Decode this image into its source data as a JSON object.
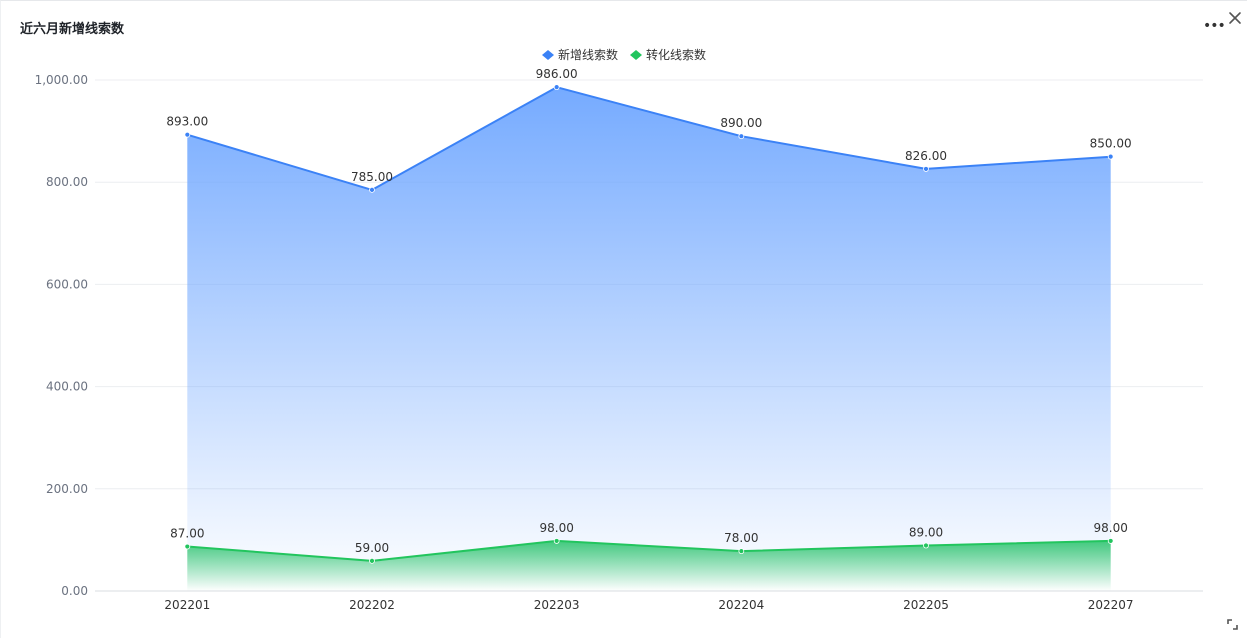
{
  "header": {
    "title": "近六月新增线索数",
    "more_icon": "more-horizontal-icon",
    "close_icon": "close-icon",
    "expand_icon": "expand-icon"
  },
  "chart_data": {
    "type": "area",
    "title": "近六月新增线索数",
    "categories": [
      "202201",
      "202202",
      "202203",
      "202204",
      "202205",
      "202207"
    ],
    "series": [
      {
        "name": "新增线索数",
        "values": [
          893,
          785,
          986,
          890,
          826,
          850
        ],
        "color": "#3b82f6",
        "fill_top": "#6ea6ff"
      },
      {
        "name": "转化线索数",
        "values": [
          87,
          59,
          98,
          78,
          89,
          98
        ],
        "color": "#22c55e",
        "fill_top": "#2fc470"
      }
    ],
    "y_ticks": [
      "0.00",
      "200.00",
      "400.00",
      "600.00",
      "800.00",
      "1,000.00"
    ],
    "ylim": [
      0,
      1000
    ],
    "grid": true,
    "legend_position": "top-center",
    "data_label_format": "0.00"
  }
}
